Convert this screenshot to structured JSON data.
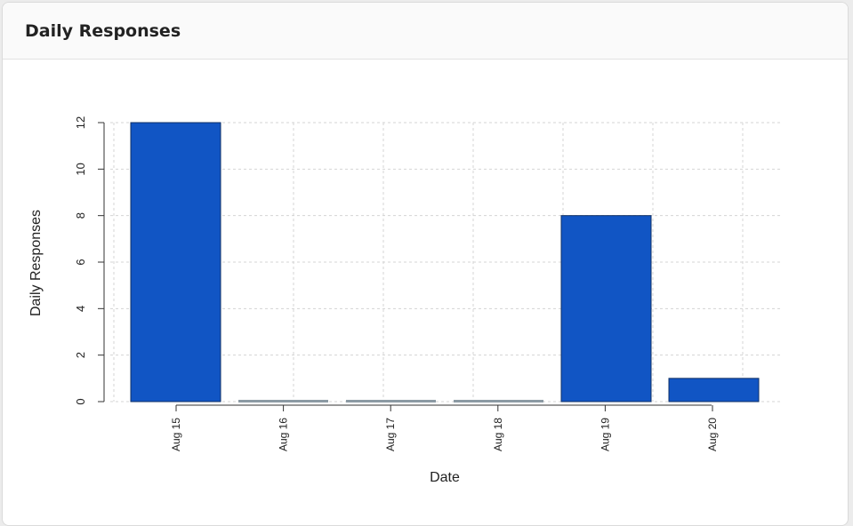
{
  "card": {
    "title": "Daily Responses"
  },
  "colors": {
    "bar": "#1155c4",
    "bar_zero": "#8c9aa4",
    "grid": "#d4d4d4",
    "axis": "#333333"
  },
  "chart_data": {
    "type": "bar",
    "categories": [
      "Aug 15",
      "Aug 16",
      "Aug 17",
      "Aug 18",
      "Aug 19",
      "Aug 20"
    ],
    "values": [
      12,
      0,
      0,
      0,
      8,
      1
    ],
    "xlabel": "Date",
    "ylabel": "Daily Responses",
    "ylim": [
      0,
      12
    ],
    "yticks": [
      "0",
      "2",
      "4",
      "6",
      "8",
      "10",
      "12"
    ],
    "grid": true
  }
}
